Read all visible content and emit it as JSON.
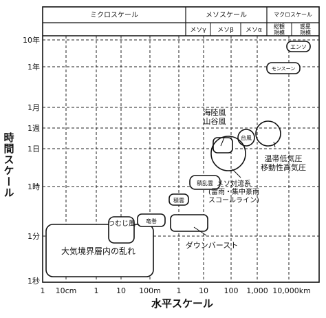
{
  "chart_data": {
    "type": "scatter",
    "title": "",
    "xlabel": "水平スケール",
    "ylabel": "時間スケール",
    "x_scale": "log",
    "y_scale": "log",
    "grid": true,
    "x_ticks": [
      "1",
      "10cm",
      "1",
      "10",
      "100m",
      "1",
      "10",
      "100",
      "1,000",
      "10,000km"
    ],
    "y_ticks": [
      "10年",
      "1年",
      "1月",
      "1週",
      "1日",
      "1時",
      "1分",
      "1秒"
    ],
    "header": {
      "micro": "ミクロスケール",
      "meso": "メソスケール",
      "macro": "マクロスケール",
      "meso_gamma": "メソγ",
      "meso_beta": "メソβ",
      "meso_alpha": "メソα",
      "synoptic": "総観\n規模",
      "planetary": "惑星\n規模"
    },
    "phenomena": [
      {
        "name": "大気境界層内の乱れ",
        "x_range": [
          "1m以下",
          "100m"
        ],
        "y_range": [
          "1秒",
          "1分"
        ]
      },
      {
        "name": "つむじ風",
        "x_range": [
          "10m",
          "100m"
        ],
        "y_range": [
          "1分",
          "10分"
        ]
      },
      {
        "name": "竜巻",
        "x_range": [
          "100m",
          "1km"
        ],
        "y_range": [
          "1分",
          "10分"
        ]
      },
      {
        "name": "積雲",
        "x_range": [
          "1km",
          "10km"
        ],
        "y_range": [
          "10分",
          "1時"
        ]
      },
      {
        "name": "ダウンバースト",
        "x_range": [
          "1km",
          "10km"
        ],
        "y_range": [
          "1分",
          "10分"
        ]
      },
      {
        "name": "積乱雲",
        "x_range": [
          "10km",
          "100km"
        ],
        "y_range": [
          "1時",
          "数時間"
        ]
      },
      {
        "name": "海陸風\n山谷風",
        "x_range": [
          "10km",
          "100km"
        ],
        "y_range": [
          "半日",
          "1日"
        ]
      },
      {
        "name": "メソ対流系\n(雷雨・集中豪雨\nスコールライン)",
        "x_range": [
          "10km",
          "100km"
        ],
        "y_range": [
          "数時間",
          "1日"
        ]
      },
      {
        "name": "台風",
        "x_range": [
          "100km",
          "1,000km"
        ],
        "y_range": [
          "1日",
          "1週"
        ]
      },
      {
        "name": "温帯低気圧\n移動性高気圧",
        "x_range": [
          "1,000km",
          "10,000km"
        ],
        "y_range": [
          "数日",
          "1週"
        ]
      },
      {
        "name": "モンスーン",
        "x_range": [
          "1,000km",
          "10,000km"
        ],
        "y_range": [
          "1年",
          "1年"
        ]
      },
      {
        "name": "エンソ",
        "x_range": [
          "1,000km",
          "10,000km"
        ],
        "y_range": [
          "数年",
          "10年"
        ]
      }
    ]
  }
}
